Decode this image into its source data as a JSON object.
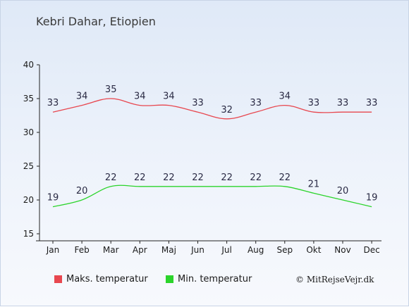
{
  "chart_data": {
    "type": "line",
    "title": "Kebri Dahar, Etiopien",
    "categories": [
      "Jan",
      "Feb",
      "Mar",
      "Apr",
      "Maj",
      "Jun",
      "Jul",
      "Aug",
      "Sep",
      "Okt",
      "Nov",
      "Dec"
    ],
    "ylim": [
      15,
      40
    ],
    "yticks": [
      15,
      20,
      25,
      30,
      35,
      40
    ],
    "grid": false,
    "legend_position": "bottom-left",
    "series": [
      {
        "name": "Maks. temperatur",
        "color": "#e8474f",
        "values": [
          33,
          34,
          35,
          34,
          34,
          33,
          32,
          33,
          34,
          33,
          33,
          33
        ]
      },
      {
        "name": "Min. temperatur",
        "color": "#2bd42b",
        "values": [
          19,
          20,
          22,
          22,
          22,
          22,
          22,
          22,
          22,
          21,
          20,
          19
        ]
      }
    ]
  },
  "credit": "© MitRejseVejr.dk"
}
